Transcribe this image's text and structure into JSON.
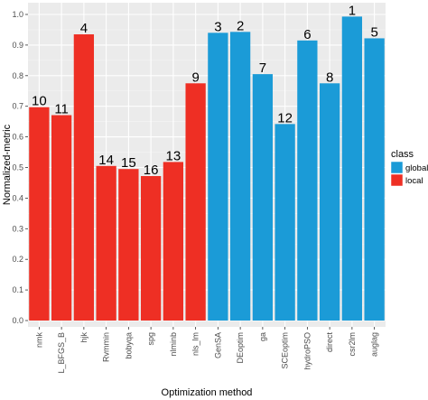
{
  "chart_data": {
    "type": "bar",
    "xlabel": "Optimization method",
    "ylabel": "Normalized-metric",
    "ylim": [
      0,
      1.0
    ],
    "yticks": [
      "0.0",
      "0.1",
      "0.2",
      "0.3",
      "0.4",
      "0.5",
      "0.6",
      "0.7",
      "0.8",
      "0.9",
      "1.0"
    ],
    "grid": true,
    "legend": {
      "title": "class",
      "placement": "right",
      "entries": [
        {
          "label": "global",
          "color": "#1b9bd7"
        },
        {
          "label": "local",
          "color": "#ee2f24"
        }
      ]
    },
    "categories": [
      "nmk",
      "L_BFGS_B",
      "hjk",
      "Rvmmin",
      "bobyqa",
      "spg",
      "nlminb",
      "nls_lm",
      "GenSA",
      "DEoptim",
      "ga",
      "SCEoptim",
      "hydroPSO",
      "direct",
      "csr2lm",
      "auglag"
    ],
    "values": [
      0.697,
      0.671,
      0.935,
      0.505,
      0.495,
      0.472,
      0.518,
      0.775,
      0.94,
      0.943,
      0.805,
      0.642,
      0.915,
      0.775,
      0.993,
      0.922
    ],
    "classes": [
      "local",
      "local",
      "local",
      "local",
      "local",
      "local",
      "local",
      "local",
      "global",
      "global",
      "global",
      "global",
      "global",
      "global",
      "global",
      "global"
    ],
    "ranks": [
      "10",
      "11",
      "4",
      "14",
      "15",
      "16",
      "13",
      "9",
      "3",
      "2",
      "7",
      "12",
      "6",
      "8",
      "1",
      "5"
    ]
  }
}
